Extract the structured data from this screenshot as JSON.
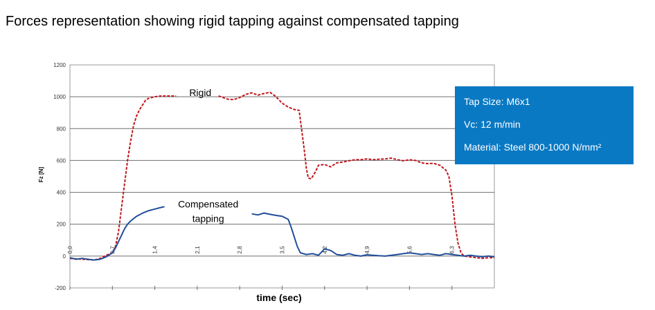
{
  "page": {
    "title": "Forces representation showing rigid tapping against compensated tapping"
  },
  "info_box": {
    "background": "#0a79c3",
    "lines": [
      {
        "label": "Tap Size:",
        "value": "M6x1"
      },
      {
        "label": "Vc:",
        "value": "12 m/min"
      },
      {
        "label": "Material:",
        "value": "Steel 800-1000 N/mm²"
      }
    ]
  },
  "chart_data": {
    "type": "line",
    "title": "",
    "xlabel": "time (sec)",
    "ylabel": "Fz [N]",
    "xlim": [
      0,
      7.0
    ],
    "ylim": [
      -200,
      1200
    ],
    "yticks": [
      -200,
      0,
      200,
      400,
      600,
      800,
      1000,
      1200
    ],
    "ytick_labels": [
      "-200",
      "0",
      "200",
      "400",
      "600",
      "800",
      "1000",
      "1200"
    ],
    "xticks": [
      0,
      0.7,
      1.4,
      2.1,
      2.8,
      3.5,
      4.2,
      4.9,
      5.6,
      6.3
    ],
    "xtick_labels": [
      "0,0",
      "0,7",
      "1,4",
      "2,1",
      "2,8",
      "3,5",
      "4,2",
      "4,9",
      "5,6",
      "6,3"
    ],
    "grid": true,
    "annotations": [
      {
        "text": "Rigid",
        "x": 2.15,
        "y": 1005
      },
      {
        "text": "Compensated",
        "x": 2.28,
        "y": 305
      },
      {
        "text": "tapping",
        "x": 2.28,
        "y": 215
      }
    ],
    "series": [
      {
        "name": "Rigid",
        "color": "#c0161d",
        "dash": "4,2",
        "segments": [
          [
            [
              0,
              -15
            ],
            [
              0.2,
              -20
            ],
            [
              0.4,
              -25
            ],
            [
              0.5,
              -15
            ],
            [
              0.6,
              5
            ],
            [
              0.7,
              20
            ],
            [
              0.75,
              60
            ],
            [
              0.8,
              150
            ],
            [
              0.85,
              300
            ],
            [
              0.9,
              450
            ],
            [
              0.95,
              600
            ],
            [
              1.0,
              720
            ],
            [
              1.05,
              820
            ],
            [
              1.1,
              880
            ],
            [
              1.15,
              920
            ],
            [
              1.2,
              950
            ],
            [
              1.25,
              980
            ],
            [
              1.3,
              990
            ],
            [
              1.4,
              1000
            ],
            [
              1.5,
              1005
            ],
            [
              1.6,
              1005
            ],
            [
              1.75,
              1005
            ]
          ],
          [
            [
              2.45,
              1005
            ],
            [
              2.6,
              985
            ],
            [
              2.7,
              982
            ],
            [
              2.8,
              995
            ],
            [
              2.9,
              1015
            ],
            [
              3.0,
              1025
            ],
            [
              3.1,
              1010
            ],
            [
              3.2,
              1020
            ],
            [
              3.3,
              1028
            ],
            [
              3.4,
              1000
            ],
            [
              3.5,
              960
            ],
            [
              3.6,
              935
            ],
            [
              3.7,
              920
            ],
            [
              3.78,
              915
            ],
            [
              3.82,
              800
            ],
            [
              3.87,
              650
            ],
            [
              3.9,
              550
            ],
            [
              3.93,
              490
            ],
            [
              3.98,
              485
            ],
            [
              4.05,
              530
            ],
            [
              4.1,
              570
            ],
            [
              4.2,
              575
            ],
            [
              4.3,
              560
            ],
            [
              4.4,
              585
            ],
            [
              4.5,
              590
            ],
            [
              4.6,
              598
            ],
            [
              4.7,
              605
            ],
            [
              4.8,
              605
            ],
            [
              4.9,
              610
            ],
            [
              5.0,
              605
            ],
            [
              5.1,
              608
            ],
            [
              5.2,
              610
            ],
            [
              5.3,
              615
            ],
            [
              5.4,
              605
            ],
            [
              5.5,
              598
            ],
            [
              5.6,
              605
            ],
            [
              5.7,
              600
            ],
            [
              5.8,
              585
            ],
            [
              5.9,
              580
            ],
            [
              6.0,
              582
            ],
            [
              6.1,
              570
            ],
            [
              6.2,
              540
            ],
            [
              6.25,
              500
            ],
            [
              6.3,
              380
            ],
            [
              6.35,
              200
            ],
            [
              6.4,
              80
            ],
            [
              6.45,
              20
            ],
            [
              6.5,
              0
            ],
            [
              6.7,
              -10
            ],
            [
              6.8,
              -15
            ],
            [
              6.9,
              -10
            ],
            [
              7.0,
              -10
            ]
          ]
        ]
      },
      {
        "name": "Compensated tapping",
        "color": "#1f4e9a",
        "dash": "",
        "segments": [
          [
            [
              0,
              -10
            ],
            [
              0.1,
              -20
            ],
            [
              0.2,
              -15
            ],
            [
              0.3,
              -20
            ],
            [
              0.4,
              -25
            ],
            [
              0.5,
              -20
            ],
            [
              0.6,
              -5
            ],
            [
              0.7,
              20
            ],
            [
              0.75,
              50
            ],
            [
              0.8,
              90
            ],
            [
              0.85,
              130
            ],
            [
              0.9,
              170
            ],
            [
              0.95,
              200
            ],
            [
              1.0,
              220
            ],
            [
              1.1,
              250
            ],
            [
              1.2,
              270
            ],
            [
              1.3,
              285
            ],
            [
              1.4,
              295
            ],
            [
              1.5,
              305
            ],
            [
              1.56,
              310
            ]
          ],
          [
            [
              3.0,
              265
            ],
            [
              3.1,
              258
            ],
            [
              3.2,
              270
            ],
            [
              3.3,
              262
            ],
            [
              3.4,
              255
            ],
            [
              3.5,
              250
            ],
            [
              3.6,
              230
            ],
            [
              3.65,
              180
            ],
            [
              3.7,
              120
            ],
            [
              3.75,
              60
            ],
            [
              3.8,
              20
            ],
            [
              3.9,
              10
            ],
            [
              4.0,
              15
            ],
            [
              4.1,
              5
            ],
            [
              4.2,
              45
            ],
            [
              4.3,
              35
            ],
            [
              4.4,
              10
            ],
            [
              4.5,
              5
            ],
            [
              4.6,
              15
            ],
            [
              4.7,
              5
            ],
            [
              4.8,
              0
            ],
            [
              4.9,
              8
            ],
            [
              5.0,
              5
            ],
            [
              5.1,
              2
            ],
            [
              5.2,
              0
            ],
            [
              5.3,
              5
            ],
            [
              5.4,
              10
            ],
            [
              5.5,
              15
            ],
            [
              5.6,
              20
            ],
            [
              5.7,
              15
            ],
            [
              5.8,
              10
            ],
            [
              5.9,
              15
            ],
            [
              6.0,
              10
            ],
            [
              6.1,
              5
            ],
            [
              6.2,
              15
            ],
            [
              6.3,
              10
            ],
            [
              6.4,
              5
            ],
            [
              6.5,
              0
            ],
            [
              6.6,
              5
            ],
            [
              6.7,
              0
            ],
            [
              6.8,
              -5
            ],
            [
              6.9,
              0
            ],
            [
              7.0,
              -5
            ]
          ]
        ]
      }
    ]
  }
}
